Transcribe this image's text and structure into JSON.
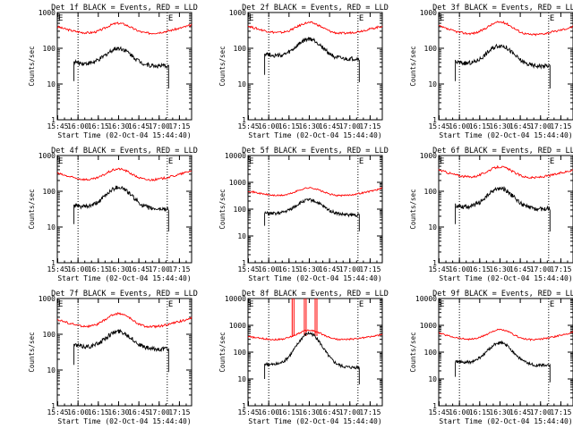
{
  "colors": {
    "events": "#000000",
    "lld": "#ff0000",
    "axis": "#000000",
    "background": "#ffffff"
  },
  "chart_data": [
    {
      "type": "line",
      "detector": "1f",
      "title": "Det 1f BLACK = Events, RED = LLD",
      "ylabel": "Counts/sec",
      "xlabel": "Start Time (02-Oct-04 15:44:40)",
      "yscale": "log",
      "ylim": [
        1,
        1000
      ],
      "yticks": [
        "1",
        "10",
        "100",
        "1000"
      ],
      "xticks": [
        "15:45",
        "16:00",
        "16:15",
        "16:30",
        "16:45",
        "17:00",
        "17:15"
      ],
      "xlim": [
        "15:44:40",
        "17:24"
      ],
      "vlines": [
        "16:00",
        "17:06"
      ],
      "corner_marks": [
        "E",
        "E"
      ],
      "series": [
        {
          "color": "red",
          "baseline_min": 220,
          "peak_time": "16:30",
          "peak_value": 500,
          "start_value": 400,
          "end_value": 450
        },
        {
          "color": "black",
          "t_start": "15:57",
          "t_end": "17:07",
          "baseline_min": 30,
          "peak_time": "16:30",
          "peak_value": 100,
          "start_value": 55,
          "end_value": 35
        }
      ]
    },
    {
      "type": "line",
      "detector": "2f",
      "title": "Det 2f BLACK = Events, RED = LLD",
      "ylabel": "Counts/sec",
      "xlabel": "Start Time (02-Oct-04 15:44:40)",
      "yscale": "log",
      "ylim": [
        1,
        1000
      ],
      "yticks": [
        "1",
        "10",
        "100",
        "1000"
      ],
      "xticks": [
        "15:45",
        "16:00",
        "16:15",
        "16:30",
        "16:45",
        "17:00",
        "17:15"
      ],
      "xlim": [
        "15:44:40",
        "17:24"
      ],
      "vlines": [
        "16:00",
        "17:06"
      ],
      "corner_marks": [
        "E",
        "E"
      ],
      "series": [
        {
          "color": "red",
          "baseline_min": 220,
          "peak_time": "16:30",
          "peak_value": 520,
          "start_value": 420,
          "end_value": 420
        },
        {
          "color": "black",
          "t_start": "15:57",
          "t_end": "17:07",
          "baseline_min": 45,
          "peak_time": "16:30",
          "peak_value": 180,
          "start_value": 110,
          "end_value": 60
        }
      ]
    },
    {
      "type": "line",
      "detector": "3f",
      "title": "Det 3f BLACK = Events, RED = LLD",
      "ylabel": "Counts/sec",
      "xlabel": "Start Time (02-Oct-04 15:44:40)",
      "yscale": "log",
      "ylim": [
        1,
        1000
      ],
      "yticks": [
        "1",
        "10",
        "100",
        "1000"
      ],
      "xticks": [
        "15:45",
        "16:00",
        "16:15",
        "16:30",
        "16:45",
        "17:00",
        "17:15"
      ],
      "xlim": [
        "15:44:40",
        "17:24"
      ],
      "vlines": [
        "16:00",
        "17:06"
      ],
      "corner_marks": [
        "E",
        "E"
      ],
      "series": [
        {
          "color": "red",
          "baseline_min": 200,
          "peak_time": "16:30",
          "peak_value": 540,
          "start_value": 420,
          "end_value": 400
        },
        {
          "color": "black",
          "t_start": "15:57",
          "t_end": "17:07",
          "baseline_min": 30,
          "peak_time": "16:30",
          "peak_value": 120,
          "start_value": 55,
          "end_value": 35
        }
      ]
    },
    {
      "type": "line",
      "detector": "4f",
      "title": "Det 4f BLACK = Events, RED = LLD",
      "ylabel": "Counts/sec",
      "xlabel": "Start Time (02-Oct-04 15:44:40)",
      "yscale": "log",
      "ylim": [
        1,
        1000
      ],
      "yticks": [
        "1",
        "10",
        "100",
        "1000"
      ],
      "xticks": [
        "15:45",
        "16:00",
        "16:15",
        "16:30",
        "16:45",
        "17:00",
        "17:15"
      ],
      "xlim": [
        "15:44:40",
        "17:24"
      ],
      "vlines": [
        "16:00",
        "17:06"
      ],
      "corner_marks": [
        "E",
        "E"
      ],
      "series": [
        {
          "color": "red",
          "baseline_min": 170,
          "peak_time": "16:30",
          "peak_value": 420,
          "start_value": 320,
          "end_value": 380
        },
        {
          "color": "black",
          "t_start": "15:57",
          "t_end": "17:07",
          "baseline_min": 30,
          "peak_time": "16:30",
          "peak_value": 130,
          "start_value": 50,
          "end_value": 35
        }
      ]
    },
    {
      "type": "line",
      "detector": "5f",
      "title": "Det 5f BLACK = Events, RED = LLD",
      "ylabel": "Counts/sec",
      "xlabel": "Start Time (02-Oct-04 15:44:40)",
      "yscale": "log",
      "ylim": [
        1,
        10000
      ],
      "yticks": [
        "1",
        "10",
        "100",
        "1000",
        "10000"
      ],
      "xticks": [
        "15:45",
        "16:00",
        "16:15",
        "16:30",
        "16:45",
        "17:00",
        "17:15"
      ],
      "xlim": [
        "15:44:40",
        "17:24"
      ],
      "vlines": [
        "16:00",
        "17:06"
      ],
      "corner_marks": [
        "E",
        "E"
      ],
      "series": [
        {
          "color": "red",
          "baseline_min": 260,
          "peak_time": "16:30",
          "peak_value": 620,
          "start_value": 480,
          "end_value": 600
        },
        {
          "color": "black",
          "t_start": "15:57",
          "t_end": "17:07",
          "baseline_min": 60,
          "peak_time": "16:30",
          "peak_value": 220,
          "start_value": 80,
          "end_value": 60
        }
      ]
    },
    {
      "type": "line",
      "detector": "6f",
      "title": "Det 6f BLACK = Events, RED = LLD",
      "ylabel": "Counts/sec",
      "xlabel": "Start Time (02-Oct-04 15:44:40)",
      "yscale": "log",
      "ylim": [
        1,
        1000
      ],
      "yticks": [
        "1",
        "10",
        "100",
        "1000"
      ],
      "xticks": [
        "15:45",
        "16:00",
        "16:15",
        "16:30",
        "16:45",
        "17:00",
        "17:15"
      ],
      "xlim": [
        "15:44:40",
        "17:24"
      ],
      "vlines": [
        "16:00",
        "17:06"
      ],
      "corner_marks": [
        "E",
        "E"
      ],
      "series": [
        {
          "color": "red",
          "baseline_min": 200,
          "peak_time": "16:30",
          "peak_value": 480,
          "start_value": 400,
          "end_value": 400
        },
        {
          "color": "black",
          "t_start": "15:57",
          "t_end": "17:07",
          "baseline_min": 30,
          "peak_time": "16:30",
          "peak_value": 120,
          "start_value": 50,
          "end_value": 35
        }
      ]
    },
    {
      "type": "line",
      "detector": "7f",
      "title": "Det 7f BLACK = Events, RED = LLD",
      "ylabel": "Counts/sec",
      "xlabel": "Start Time (02-Oct-04 15:44:40)",
      "yscale": "log",
      "ylim": [
        1,
        1000
      ],
      "yticks": [
        "1",
        "10",
        "100",
        "1000"
      ],
      "xticks": [
        "15:45",
        "16:00",
        "16:15",
        "16:30",
        "16:45",
        "17:00",
        "17:15"
      ],
      "xlim": [
        "15:44:40",
        "17:24"
      ],
      "vlines": [
        "16:00",
        "17:06"
      ],
      "corner_marks": [
        "E",
        "E"
      ],
      "series": [
        {
          "color": "red",
          "baseline_min": 130,
          "peak_time": "16:30",
          "peak_value": 380,
          "start_value": 260,
          "end_value": 290
        },
        {
          "color": "black",
          "t_start": "15:57",
          "t_end": "17:07",
          "baseline_min": 35,
          "peak_time": "16:30",
          "peak_value": 120,
          "start_value": 70,
          "end_value": 45
        }
      ]
    },
    {
      "type": "line",
      "detector": "8f",
      "title": "Det 8f BLACK = Events, RED = LLD",
      "ylabel": "Counts/sec",
      "xlabel": "Start Time (02-Oct-04 15:44:40)",
      "yscale": "log",
      "ylim": [
        1,
        10000
      ],
      "yticks": [
        "1",
        "10",
        "100",
        "1000",
        "10000"
      ],
      "xticks": [
        "15:45",
        "16:00",
        "16:15",
        "16:30",
        "16:45",
        "17:00",
        "17:15"
      ],
      "xlim": [
        "15:44:40",
        "17:24"
      ],
      "vlines": [
        "16:00",
        "17:06"
      ],
      "corner_marks": [
        "E",
        "E"
      ],
      "series": [
        {
          "color": "red",
          "baseline_min": 250,
          "peak_time": "16:30",
          "peak_value": 650,
          "start_value": 380,
          "end_value": 450,
          "spikes": [
            "16:18",
            "16:27",
            "16:35"
          ]
        },
        {
          "color": "black",
          "t_start": "15:57",
          "t_end": "17:07",
          "baseline_min": 25,
          "peak_time": "16:30",
          "peak_value": 500,
          "start_value": 50,
          "end_value": 30
        }
      ]
    },
    {
      "type": "line",
      "detector": "9f",
      "title": "Det 9f BLACK = Events, RED = LLD",
      "ylabel": "Counts/sec",
      "xlabel": "Start Time (02-Oct-04 15:44:40)",
      "yscale": "log",
      "ylim": [
        1,
        10000
      ],
      "yticks": [
        "1",
        "10",
        "100",
        "1000",
        "10000"
      ],
      "xticks": [
        "15:45",
        "16:00",
        "16:15",
        "16:30",
        "16:45",
        "17:00",
        "17:15"
      ],
      "xlim": [
        "15:44:40",
        "17:24"
      ],
      "vlines": [
        "16:00",
        "17:06"
      ],
      "corner_marks": [
        "E",
        "E"
      ],
      "series": [
        {
          "color": "red",
          "baseline_min": 230,
          "peak_time": "16:30",
          "peak_value": 680,
          "start_value": 520,
          "end_value": 560
        },
        {
          "color": "black",
          "t_start": "15:57",
          "t_end": "17:07",
          "baseline_min": 30,
          "peak_time": "16:30",
          "peak_value": 220,
          "start_value": 65,
          "end_value": 35
        }
      ]
    }
  ]
}
